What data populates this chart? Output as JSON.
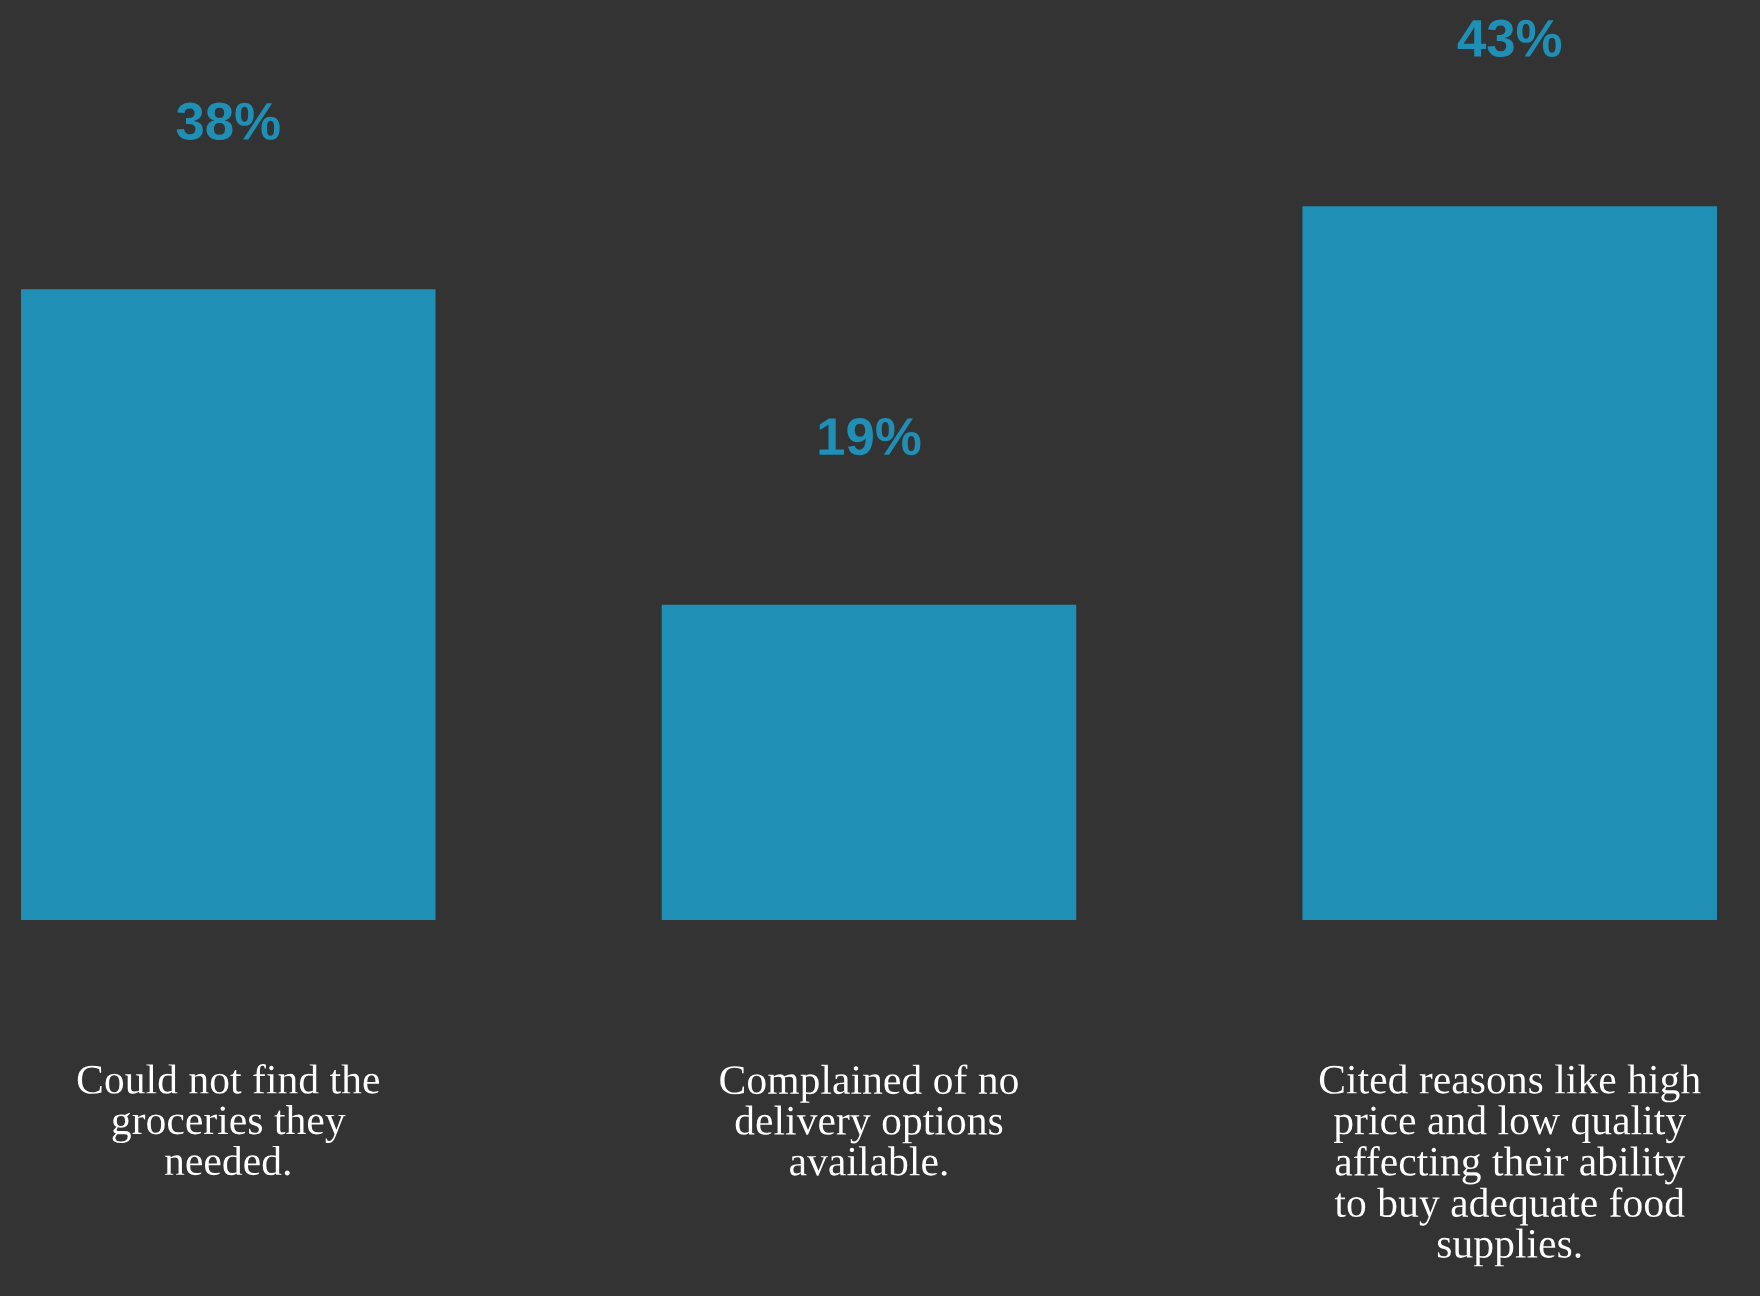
{
  "chart_data": {
    "type": "bar",
    "categories": [
      "Could not find the\ngroceries they\nneeded.",
      "Complained of no\ndelivery options\navailable.",
      "Cited reasons like high\nprice and low quality\naffecting their ability\nto buy adequate food\nsupplies."
    ],
    "values": [
      38,
      19,
      43
    ],
    "color": "#1f8fb5",
    "value_labels": [
      "38%",
      "19%",
      "43%"
    ]
  }
}
